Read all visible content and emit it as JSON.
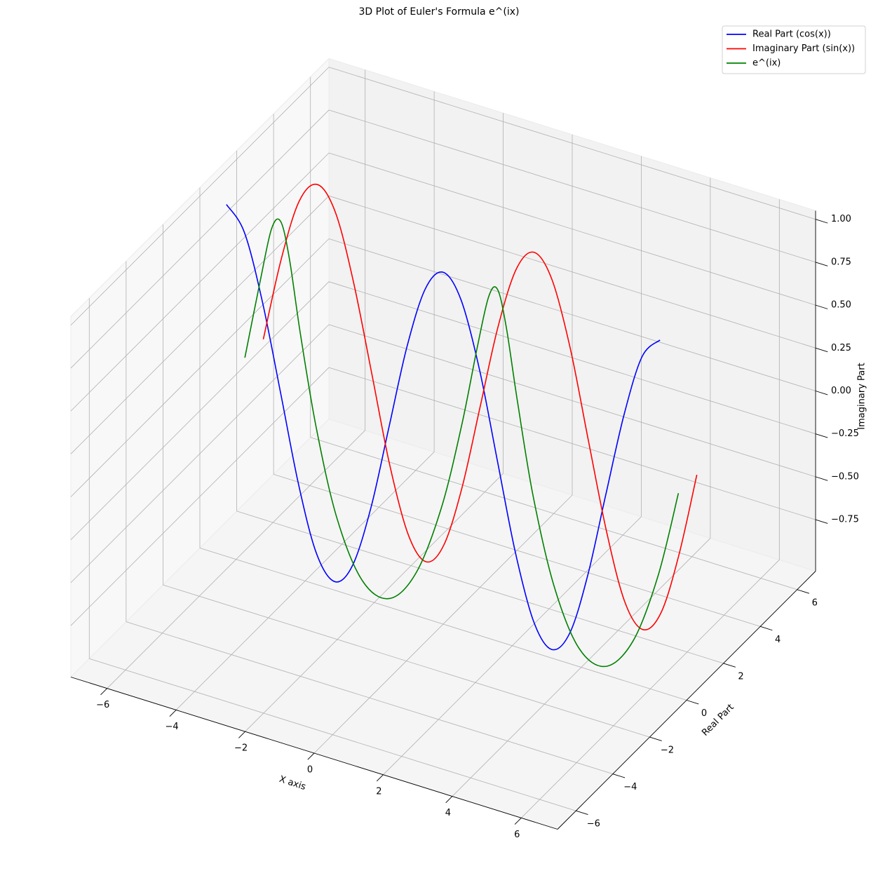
{
  "chart_data": {
    "type": "line3d",
    "title": "3D Plot of Euler's Formula e^(ix)",
    "xlabel": "X axis",
    "ylabel": "Real Part",
    "zlabel": "Imaginary Part",
    "xlim": [
      -7.05,
      7.05
    ],
    "ylim": [
      -7,
      7
    ],
    "zlim": [
      -1.05,
      1.05
    ],
    "xticks": [
      {
        "value": -6,
        "label": "−6"
      },
      {
        "value": -4,
        "label": "−4"
      },
      {
        "value": -2,
        "label": "−2"
      },
      0,
      2,
      4,
      6
    ],
    "yticks": [
      {
        "value": -6,
        "label": "−6"
      },
      {
        "value": -4,
        "label": "−4"
      },
      {
        "value": -2,
        "label": "−2"
      },
      0,
      2,
      4,
      6
    ],
    "zticks": [
      {
        "value": 1,
        "label": "1.00"
      },
      {
        "value": 0.75,
        "label": "0.75"
      },
      {
        "value": 0.5,
        "label": "0.50"
      },
      {
        "value": 0.25,
        "label": "0.25"
      },
      {
        "value": 0,
        "label": "0.00"
      },
      {
        "value": -0.25,
        "label": "−0.25"
      },
      {
        "value": -0.5,
        "label": "−0.50"
      },
      {
        "value": -0.75,
        "label": "−0.75"
      }
    ],
    "grid": true,
    "legend": "upper right",
    "x": [
      -6.28,
      -5.76,
      -5.24,
      -4.71,
      -4.19,
      -3.67,
      -3.14,
      -2.62,
      -2.09,
      -1.57,
      -1.05,
      -0.52,
      0,
      0.52,
      1.05,
      1.57,
      2.09,
      2.62,
      3.14,
      3.67,
      4.19,
      4.71,
      5.24,
      5.76,
      6.28
    ],
    "series": [
      {
        "name": "Real Part (cos(x))",
        "color": "#0000ff",
        "y": [
          0,
          0,
          0,
          0,
          0,
          0,
          0,
          0,
          0,
          0,
          0,
          0,
          0,
          0,
          0,
          0,
          0,
          0,
          0,
          0,
          0,
          0,
          0,
          0,
          0
        ],
        "z": [
          1,
          0.87,
          0.5,
          0,
          -0.5,
          -0.87,
          -1,
          -0.87,
          -0.5,
          0,
          0.5,
          0.87,
          1,
          0.87,
          0.5,
          0,
          -0.5,
          -0.87,
          -1,
          -0.87,
          -0.5,
          0,
          0.5,
          0.87,
          1
        ]
      },
      {
        "name": "Imaginary Part (sin(x))",
        "color": "#ff0000",
        "y": [
          2,
          2,
          2,
          2,
          2,
          2,
          2,
          2,
          2,
          2,
          2,
          2,
          2,
          2,
          2,
          2,
          2,
          2,
          2,
          2,
          2,
          2,
          2,
          2,
          2
        ],
        "z": [
          0,
          0.5,
          0.87,
          1,
          0.87,
          0.5,
          0,
          -0.5,
          -0.87,
          -1,
          -0.87,
          -0.5,
          0,
          0.5,
          0.87,
          1,
          0.87,
          0.5,
          0,
          -0.5,
          -0.87,
          -1,
          -0.87,
          -0.5,
          0
        ]
      },
      {
        "name": "e^(ix)",
        "color": "#008000",
        "y": [
          1,
          0.87,
          0.5,
          0,
          -0.5,
          -0.87,
          -1,
          -0.87,
          -0.5,
          0,
          0.5,
          0.87,
          1,
          0.87,
          0.5,
          0,
          -0.5,
          -0.87,
          -1,
          -0.87,
          -0.5,
          0,
          0.5,
          0.87,
          1
        ],
        "z": [
          0,
          0.5,
          0.87,
          1,
          0.87,
          0.5,
          0,
          -0.5,
          -0.87,
          -1,
          -0.87,
          -0.5,
          0,
          0.5,
          0.87,
          1,
          0.87,
          0.5,
          0,
          -0.5,
          -0.87,
          -1,
          -0.87,
          -0.5,
          0
        ]
      }
    ]
  }
}
